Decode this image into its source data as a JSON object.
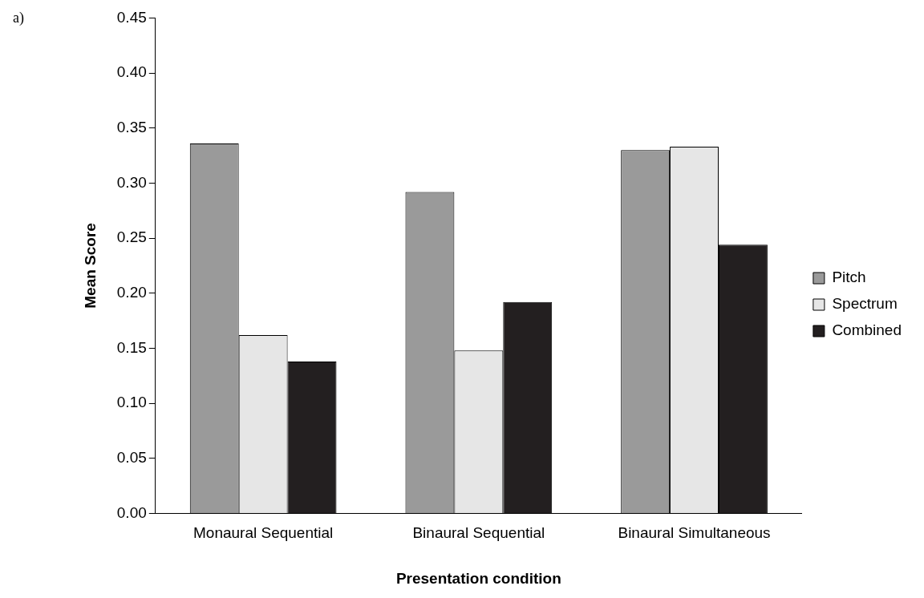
{
  "chart_data": {
    "type": "bar",
    "xlabel": "Presentation condition",
    "ylabel": "Mean Score",
    "annotations": [
      "a)"
    ],
    "categories": [
      "Monaural Sequential",
      "Binaural Sequential",
      "Binaural Simultaneous"
    ],
    "series": [
      {
        "name": "Pitch",
        "color": "#9a9a9a",
        "values": [
          0.336,
          0.292,
          0.33
        ]
      },
      {
        "name": "Spectrum",
        "color": "#e6e6e6",
        "values": [
          0.162,
          0.148,
          0.333
        ]
      },
      {
        "name": "Combined",
        "color": "#231f20",
        "values": [
          0.138,
          0.192,
          0.244
        ]
      }
    ],
    "ylim": [
      0,
      0.45
    ],
    "yticks": [
      {
        "value": 0,
        "label": "0.00"
      },
      {
        "value": 0.05,
        "label": "0.05"
      },
      {
        "value": 0.1,
        "label": "0.10"
      },
      {
        "value": 0.15,
        "label": "0.15"
      },
      {
        "value": 0.2,
        "label": "0.20"
      },
      {
        "value": 0.25,
        "label": "0.25"
      },
      {
        "value": 0.3,
        "label": "0.30"
      },
      {
        "value": 0.35,
        "label": "0.35"
      },
      {
        "value": 0.4,
        "label": "0.40"
      },
      {
        "value": 0.45,
        "label": "0.45"
      }
    ],
    "grid": false,
    "legend": "right"
  }
}
